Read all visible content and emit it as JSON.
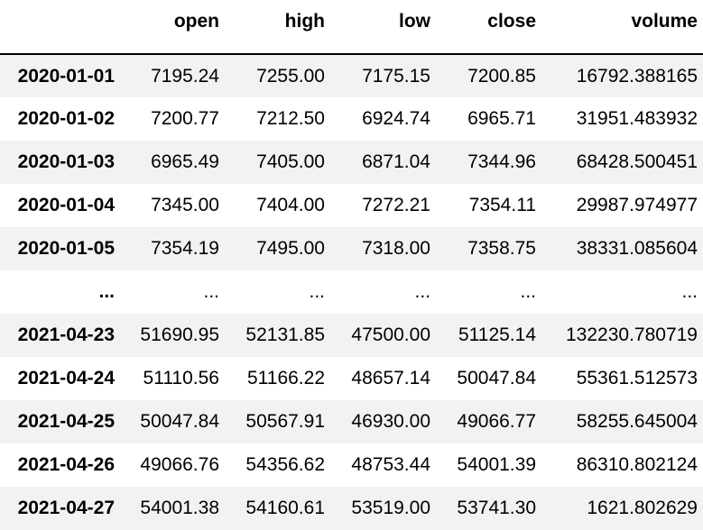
{
  "table": {
    "columns": [
      "",
      "open",
      "high",
      "low",
      "close",
      "volume"
    ],
    "rows": [
      {
        "index": "2020-01-01",
        "open": "7195.24",
        "high": "7255.00",
        "low": "7175.15",
        "close": "7200.85",
        "volume": "16792.388165"
      },
      {
        "index": "2020-01-02",
        "open": "7200.77",
        "high": "7212.50",
        "low": "6924.74",
        "close": "6965.71",
        "volume": "31951.483932"
      },
      {
        "index": "2020-01-03",
        "open": "6965.49",
        "high": "7405.00",
        "low": "6871.04",
        "close": "7344.96",
        "volume": "68428.500451"
      },
      {
        "index": "2020-01-04",
        "open": "7345.00",
        "high": "7404.00",
        "low": "7272.21",
        "close": "7354.11",
        "volume": "29987.974977"
      },
      {
        "index": "2020-01-05",
        "open": "7354.19",
        "high": "7495.00",
        "low": "7318.00",
        "close": "7358.75",
        "volume": "38331.085604"
      },
      {
        "index": "...",
        "open": "...",
        "high": "...",
        "low": "...",
        "close": "...",
        "volume": "..."
      },
      {
        "index": "2021-04-23",
        "open": "51690.95",
        "high": "52131.85",
        "low": "47500.00",
        "close": "51125.14",
        "volume": "132230.780719"
      },
      {
        "index": "2021-04-24",
        "open": "51110.56",
        "high": "51166.22",
        "low": "48657.14",
        "close": "50047.84",
        "volume": "55361.512573"
      },
      {
        "index": "2021-04-25",
        "open": "50047.84",
        "high": "50567.91",
        "low": "46930.00",
        "close": "49066.77",
        "volume": "58255.645004"
      },
      {
        "index": "2021-04-26",
        "open": "49066.76",
        "high": "54356.62",
        "low": "48753.44",
        "close": "54001.39",
        "volume": "86310.802124"
      },
      {
        "index": "2021-04-27",
        "open": "54001.38",
        "high": "54160.61",
        "low": "53519.00",
        "close": "53741.30",
        "volume": "1621.802629"
      }
    ]
  }
}
